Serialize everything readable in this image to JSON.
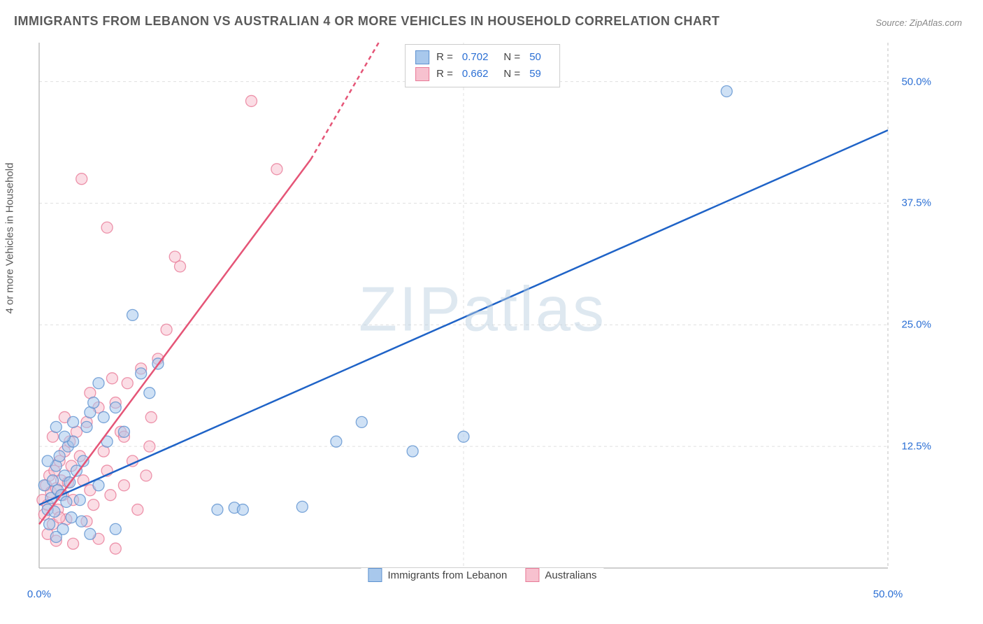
{
  "title": "IMMIGRANTS FROM LEBANON VS AUSTRALIAN 4 OR MORE VEHICLES IN HOUSEHOLD CORRELATION CHART",
  "source": "Source: ZipAtlas.com",
  "ylabel": "4 or more Vehicles in Household",
  "watermark": "ZIPatlas",
  "chart": {
    "type": "scatter",
    "xlim": [
      0,
      50
    ],
    "ylim": [
      0,
      54
    ],
    "x_ticks": [
      0,
      50
    ],
    "x_tick_labels": [
      "0.0%",
      "50.0%"
    ],
    "y_ticks": [
      12.5,
      25,
      37.5,
      50
    ],
    "y_tick_labels": [
      "12.5%",
      "25.0%",
      "37.5%",
      "50.0%"
    ],
    "background_color": "#ffffff",
    "grid_color": "#e0e0e0",
    "axis_color": "#bfbfbf",
    "grid_dash": "4,4",
    "marker_radius": 8,
    "marker_opacity": 0.55,
    "series": [
      {
        "name": "Immigrants from Lebanon",
        "color": "#7aa9e0",
        "fill": "#a8c8ec",
        "stroke": "#5d91cf",
        "line_color": "#1f63c7",
        "line_width": 2.5,
        "r": 0.702,
        "n": 50,
        "trend": {
          "x1": 0,
          "y1": 6.5,
          "x2": 50,
          "y2": 45
        },
        "trend_dash_after": 50,
        "points": [
          [
            0.3,
            8.5
          ],
          [
            0.5,
            6.0
          ],
          [
            0.6,
            4.5
          ],
          [
            0.7,
            7.2
          ],
          [
            0.8,
            9.0
          ],
          [
            0.9,
            5.8
          ],
          [
            1.0,
            10.5
          ],
          [
            1.1,
            8.0
          ],
          [
            1.2,
            11.5
          ],
          [
            1.3,
            7.5
          ],
          [
            1.4,
            4.0
          ],
          [
            1.5,
            9.5
          ],
          [
            1.6,
            6.8
          ],
          [
            1.7,
            12.5
          ],
          [
            1.8,
            8.8
          ],
          [
            1.9,
            5.2
          ],
          [
            2.0,
            13.0
          ],
          [
            2.2,
            10.0
          ],
          [
            2.4,
            7.0
          ],
          [
            2.6,
            11.0
          ],
          [
            2.8,
            14.5
          ],
          [
            3.0,
            16.0
          ],
          [
            3.2,
            17.0
          ],
          [
            3.5,
            8.5
          ],
          [
            3.8,
            15.5
          ],
          [
            4.0,
            13.0
          ],
          [
            4.5,
            16.5
          ],
          [
            5.0,
            14.0
          ],
          [
            5.5,
            26.0
          ],
          [
            6.0,
            20.0
          ],
          [
            7.0,
            21.0
          ],
          [
            3.0,
            3.5
          ],
          [
            4.5,
            4.0
          ],
          [
            2.5,
            4.8
          ],
          [
            1.0,
            3.2
          ],
          [
            10.5,
            6.0
          ],
          [
            11.5,
            6.2
          ],
          [
            12.0,
            6.0
          ],
          [
            15.5,
            6.3
          ],
          [
            17.5,
            13.0
          ],
          [
            19.0,
            15.0
          ],
          [
            22.0,
            12.0
          ],
          [
            25.0,
            13.5
          ],
          [
            40.5,
            49.0
          ],
          [
            1.5,
            13.5
          ],
          [
            2.0,
            15.0
          ],
          [
            0.5,
            11.0
          ],
          [
            6.5,
            18.0
          ],
          [
            3.5,
            19.0
          ],
          [
            1.0,
            14.5
          ]
        ]
      },
      {
        "name": "Australians",
        "color": "#f29bb1",
        "fill": "#f7c1cf",
        "stroke": "#e87b97",
        "line_color": "#e55577",
        "line_width": 2.5,
        "r": 0.662,
        "n": 59,
        "trend": {
          "x1": 0,
          "y1": 4.5,
          "x2": 16,
          "y2": 42
        },
        "trend_dash_after": 16,
        "trend_dash": {
          "x2": 20,
          "y2": 54
        },
        "points": [
          [
            0.2,
            7.0
          ],
          [
            0.3,
            5.5
          ],
          [
            0.4,
            8.5
          ],
          [
            0.5,
            6.5
          ],
          [
            0.6,
            9.5
          ],
          [
            0.7,
            7.8
          ],
          [
            0.8,
            4.5
          ],
          [
            0.9,
            10.0
          ],
          [
            1.0,
            8.2
          ],
          [
            1.1,
            6.0
          ],
          [
            1.2,
            11.0
          ],
          [
            1.3,
            9.0
          ],
          [
            1.4,
            7.5
          ],
          [
            1.5,
            12.0
          ],
          [
            1.6,
            5.0
          ],
          [
            1.7,
            8.8
          ],
          [
            1.8,
            13.0
          ],
          [
            1.9,
            10.5
          ],
          [
            2.0,
            7.0
          ],
          [
            2.2,
            14.0
          ],
          [
            2.4,
            11.5
          ],
          [
            2.6,
            9.0
          ],
          [
            2.8,
            15.0
          ],
          [
            3.0,
            8.0
          ],
          [
            3.2,
            6.5
          ],
          [
            3.5,
            16.5
          ],
          [
            3.8,
            12.0
          ],
          [
            4.0,
            10.0
          ],
          [
            4.2,
            7.5
          ],
          [
            4.5,
            17.0
          ],
          [
            4.8,
            14.0
          ],
          [
            5.0,
            8.5
          ],
          [
            5.2,
            19.0
          ],
          [
            5.5,
            11.0
          ],
          [
            5.8,
            6.0
          ],
          [
            6.0,
            20.5
          ],
          [
            6.3,
            9.5
          ],
          [
            6.6,
            15.5
          ],
          [
            7.0,
            21.5
          ],
          [
            7.5,
            24.5
          ],
          [
            8.0,
            32.0
          ],
          [
            8.3,
            31.0
          ],
          [
            2.0,
            2.5
          ],
          [
            3.5,
            3.0
          ],
          [
            4.5,
            2.0
          ],
          [
            0.5,
            3.5
          ],
          [
            1.0,
            2.8
          ],
          [
            2.5,
            40.0
          ],
          [
            4.0,
            35.0
          ],
          [
            5.0,
            13.5
          ],
          [
            6.5,
            12.5
          ],
          [
            1.5,
            15.5
          ],
          [
            3.0,
            18.0
          ],
          [
            4.3,
            19.5
          ],
          [
            0.8,
            13.5
          ],
          [
            12.5,
            48.0
          ],
          [
            14.0,
            41.0
          ],
          [
            1.2,
            5.2
          ],
          [
            2.8,
            4.8
          ]
        ]
      }
    ],
    "vgrid_x": [
      25
    ],
    "legend_top": {
      "border_color": "#cccccc",
      "rows": [
        {
          "swatch_fill": "#a8c8ec",
          "swatch_stroke": "#5d91cf",
          "r_label": "R =",
          "r_val": "0.702",
          "n_label": "N =",
          "n_val": "50"
        },
        {
          "swatch_fill": "#f7c1cf",
          "swatch_stroke": "#e87b97",
          "r_label": "R =",
          "r_val": "0.662",
          "n_label": "N =",
          "n_val": "59"
        }
      ]
    },
    "legend_bottom": [
      {
        "swatch_fill": "#a8c8ec",
        "swatch_stroke": "#5d91cf",
        "label": "Immigrants from Lebanon"
      },
      {
        "swatch_fill": "#f7c1cf",
        "swatch_stroke": "#e87b97",
        "label": "Australians"
      }
    ]
  }
}
